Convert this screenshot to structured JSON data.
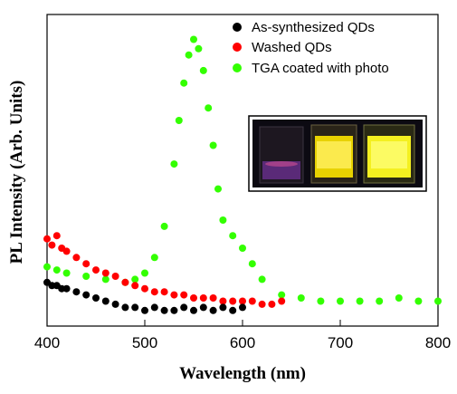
{
  "chart_data": {
    "type": "scatter",
    "xlabel": "Wavelength (nm)",
    "ylabel": "PL Intensity (Arb. Units)",
    "xlim": [
      400,
      800
    ],
    "ylim": [
      0,
      100
    ],
    "x_ticks": [
      "400",
      "500",
      "600",
      "700",
      "800"
    ],
    "y_ticks_labeled": false,
    "grid": false,
    "legend_position": "top-right",
    "inset": "photo of three vials under UV illumination",
    "series": [
      {
        "name": "As-synthesized QDs",
        "color": "#000000",
        "x": [
          400,
          405,
          410,
          415,
          420,
          430,
          440,
          450,
          460,
          470,
          480,
          490,
          500,
          510,
          520,
          530,
          540,
          550,
          560,
          570,
          580,
          590,
          600
        ],
        "y": [
          14,
          13,
          13,
          12,
          12,
          11,
          10,
          9,
          8,
          7,
          6,
          6,
          5,
          6,
          5,
          5,
          6,
          5,
          6,
          5,
          6,
          5,
          6
        ]
      },
      {
        "name": "Washed QDs",
        "color": "#ff0000",
        "x": [
          400,
          405,
          410,
          415,
          420,
          430,
          440,
          450,
          460,
          470,
          480,
          490,
          500,
          510,
          520,
          530,
          540,
          550,
          560,
          570,
          580,
          590,
          600,
          610,
          620,
          630,
          640
        ],
        "y": [
          28,
          26,
          29,
          25,
          24,
          22,
          20,
          18,
          17,
          16,
          14,
          13,
          12,
          11,
          11,
          10,
          10,
          9,
          9,
          9,
          8,
          8,
          8,
          8,
          7,
          7,
          8
        ]
      },
      {
        "name": "TGA coated with photo",
        "color": "#33ff00",
        "x": [
          400,
          410,
          420,
          440,
          460,
          480,
          490,
          500,
          510,
          520,
          530,
          535,
          540,
          545,
          550,
          555,
          560,
          565,
          570,
          575,
          580,
          590,
          600,
          610,
          620,
          640,
          660,
          680,
          700,
          720,
          740,
          760,
          780,
          800
        ],
        "y": [
          19,
          18,
          17,
          16,
          15,
          14,
          15,
          17,
          22,
          32,
          52,
          66,
          78,
          87,
          92,
          89,
          82,
          70,
          58,
          44,
          34,
          29,
          25,
          20,
          15,
          10,
          9,
          8,
          8,
          8,
          8,
          9,
          8,
          8
        ]
      }
    ]
  }
}
